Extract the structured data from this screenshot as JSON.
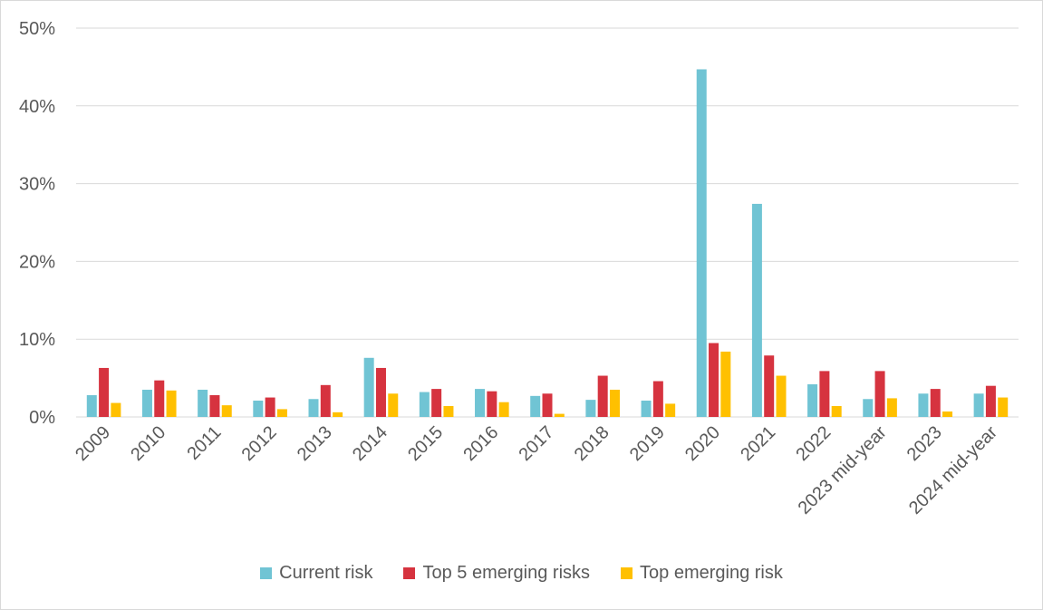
{
  "chart_data": {
    "type": "bar",
    "categories": [
      "2009",
      "2010",
      "2011",
      "2012",
      "2013",
      "2014",
      "2015",
      "2016",
      "2017",
      "2018",
      "2019",
      "2020",
      "2021",
      "2022",
      "2023 mid-year",
      "2023",
      "2024 mid-year"
    ],
    "series": [
      {
        "name": "Current risk",
        "color": "#70c4d4",
        "values": [
          2.8,
          3.5,
          3.5,
          2.1,
          2.3,
          7.6,
          3.2,
          3.6,
          2.7,
          2.2,
          2.1,
          44.7,
          27.4,
          4.2,
          2.3,
          3.0,
          3.0
        ]
      },
      {
        "name": "Top 5 emerging risks",
        "color": "#d6333f",
        "values": [
          6.3,
          4.7,
          2.8,
          2.5,
          4.1,
          6.3,
          3.6,
          3.3,
          3.0,
          5.3,
          4.6,
          9.5,
          7.9,
          5.9,
          5.9,
          3.6,
          4.0
        ]
      },
      {
        "name": "Top emerging risk",
        "color": "#ffc000",
        "values": [
          1.8,
          3.4,
          1.5,
          1.0,
          0.6,
          3.0,
          1.4,
          1.9,
          0.4,
          3.5,
          1.7,
          8.4,
          5.3,
          1.4,
          2.4,
          0.7,
          2.5
        ]
      }
    ],
    "y_ticks": [
      "0%",
      "10%",
      "20%",
      "30%",
      "40%",
      "50%"
    ],
    "ylim": [
      0,
      50
    ],
    "y_unit": "%",
    "grid": "horizontal",
    "legend_position": "bottom"
  }
}
